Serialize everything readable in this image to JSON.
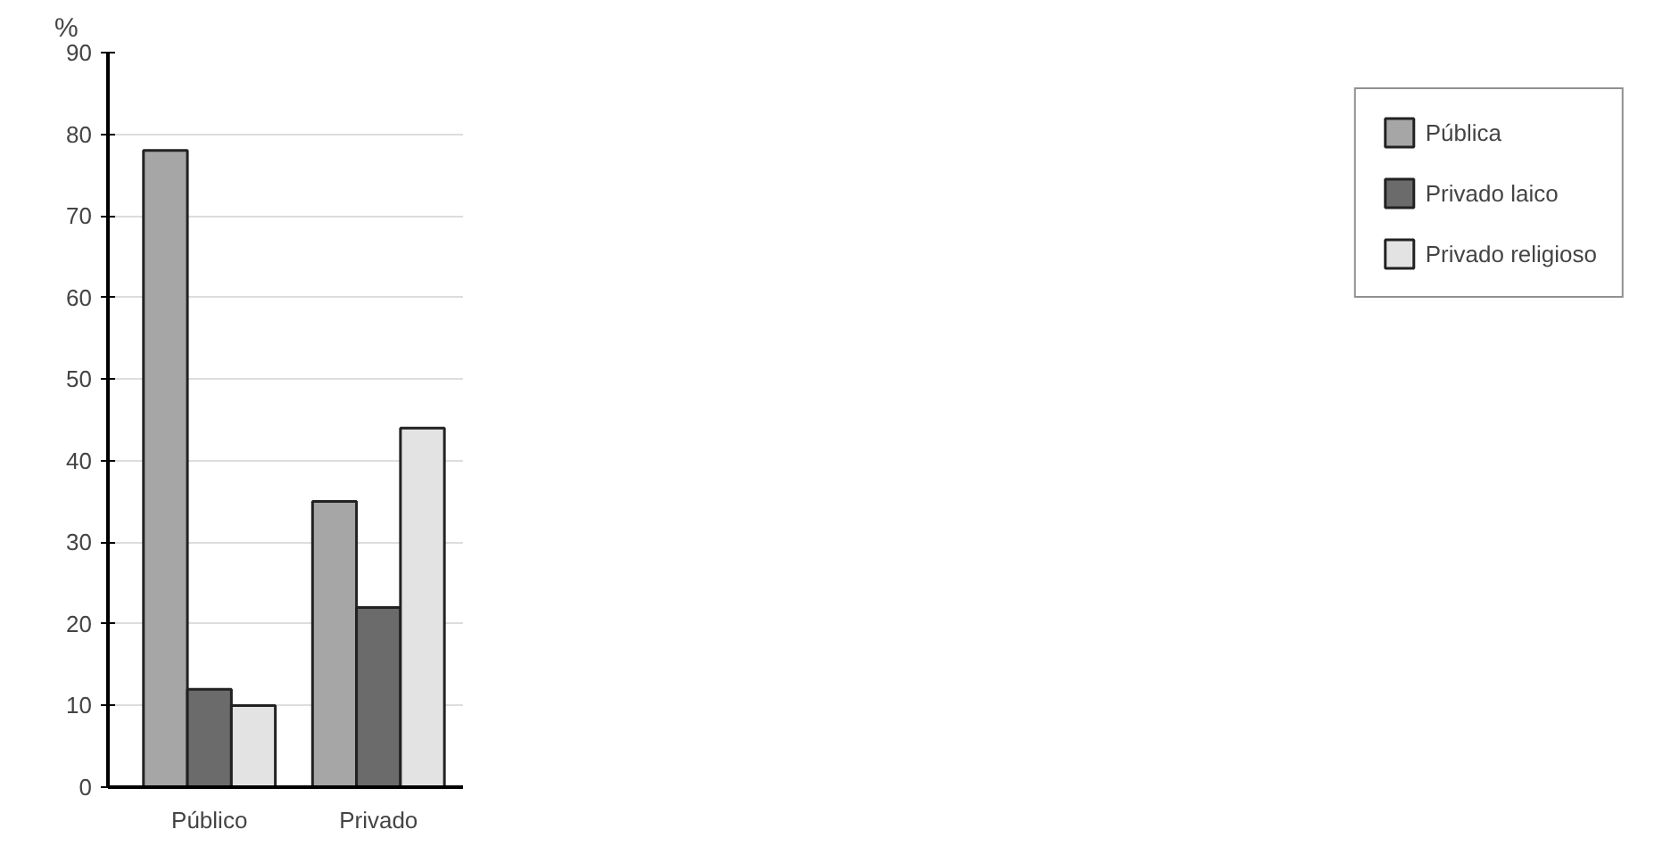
{
  "chart_data": {
    "type": "bar",
    "ylabel": "%",
    "categories": [
      "Público",
      "Privado"
    ],
    "series": [
      {
        "name": "Pública",
        "color": "#a6a6a6",
        "values": [
          78,
          35
        ]
      },
      {
        "name": "Privado laico",
        "color": "#6b6b6b",
        "values": [
          12,
          22
        ]
      },
      {
        "name": "Privado religioso",
        "color": "#e3e3e3",
        "values": [
          10,
          44
        ]
      }
    ],
    "ylim": [
      0,
      90
    ],
    "yticks": [
      0,
      10,
      20,
      30,
      40,
      50,
      60,
      70,
      80,
      90
    ],
    "grid": "y",
    "legend": "right"
  }
}
